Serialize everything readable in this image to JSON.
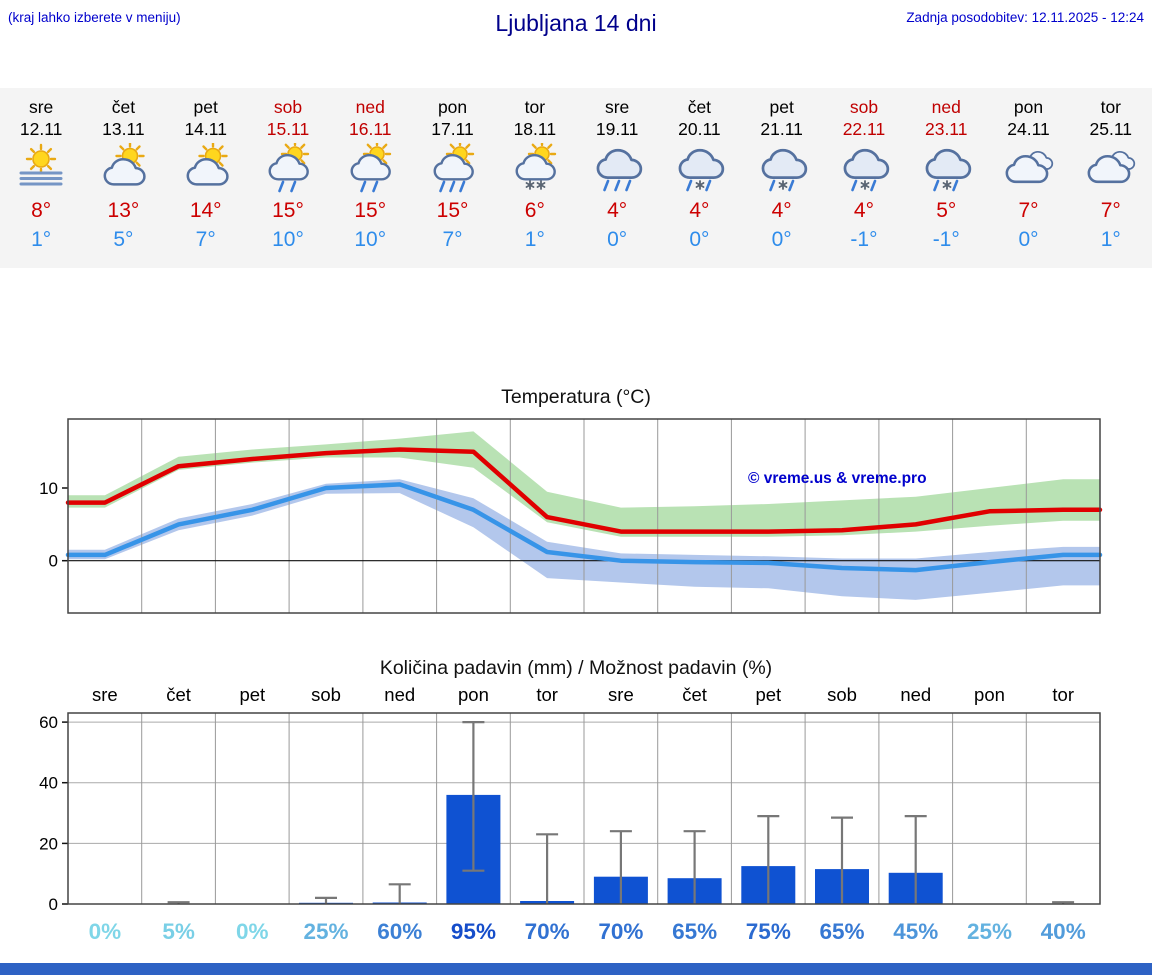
{
  "header": {
    "left_note": "(kraj lahko izberete v meniju)",
    "title": "Ljubljana 14 dni",
    "last_update": "Zadnja posodobitev: 12.11.2025 - 12:24"
  },
  "forecast": {
    "days": [
      {
        "name": "sre",
        "date": "12.11",
        "weekend": false,
        "icon": "fog-sun",
        "high": "8°",
        "low": "1°"
      },
      {
        "name": "čet",
        "date": "13.11",
        "weekend": false,
        "icon": "sun-cloud",
        "high": "13°",
        "low": "5°"
      },
      {
        "name": "pet",
        "date": "14.11",
        "weekend": false,
        "icon": "sun-cloud",
        "high": "14°",
        "low": "7°"
      },
      {
        "name": "sob",
        "date": "15.11",
        "weekend": true,
        "icon": "sun-showers",
        "high": "15°",
        "low": "10°"
      },
      {
        "name": "ned",
        "date": "16.11",
        "weekend": true,
        "icon": "sun-showers",
        "high": "15°",
        "low": "10°"
      },
      {
        "name": "pon",
        "date": "17.11",
        "weekend": false,
        "icon": "sun-rain",
        "high": "15°",
        "low": "7°"
      },
      {
        "name": "tor",
        "date": "18.11",
        "weekend": false,
        "icon": "sun-snow",
        "high": "6°",
        "low": "1°"
      },
      {
        "name": "sre",
        "date": "19.11",
        "weekend": false,
        "icon": "rain",
        "high": "4°",
        "low": "0°"
      },
      {
        "name": "čet",
        "date": "20.11",
        "weekend": false,
        "icon": "sleet",
        "high": "4°",
        "low": "0°"
      },
      {
        "name": "pet",
        "date": "21.11",
        "weekend": false,
        "icon": "sleet",
        "high": "4°",
        "low": "0°"
      },
      {
        "name": "sob",
        "date": "22.11",
        "weekend": true,
        "icon": "sleet",
        "high": "4°",
        "low": "-1°"
      },
      {
        "name": "ned",
        "date": "23.11",
        "weekend": true,
        "icon": "sleet",
        "high": "5°",
        "low": "-1°"
      },
      {
        "name": "pon",
        "date": "24.11",
        "weekend": false,
        "icon": "cloudy",
        "high": "7°",
        "low": "0°"
      },
      {
        "name": "tor",
        "date": "25.11",
        "weekend": false,
        "icon": "cloudy",
        "high": "7°",
        "low": "1°"
      }
    ]
  },
  "chart_data": [
    {
      "type": "line",
      "title": "Temperatura (°C)",
      "categories": [
        "sre 12.11",
        "čet 13.11",
        "pet 14.11",
        "sob 15.11",
        "ned 16.11",
        "pon 17.11",
        "tor 18.11",
        "sre 19.11",
        "čet 20.11",
        "pet 21.11",
        "sob 22.11",
        "ned 23.11",
        "pon 24.11",
        "tor 25.11"
      ],
      "series": [
        {
          "name": "max temperature",
          "color": "#e00000",
          "values": [
            8,
            13,
            14,
            14.8,
            15.3,
            15,
            6,
            4,
            4,
            4,
            4.2,
            5,
            6.8,
            7
          ]
        },
        {
          "name": "min temperature",
          "color": "#3794e8",
          "values": [
            0.8,
            5,
            7,
            10,
            10.5,
            7,
            1.2,
            0,
            -0.2,
            -0.3,
            -1,
            -1.3,
            -0.2,
            0.8
          ]
        }
      ],
      "bands": [
        {
          "name": "max-range",
          "color": "#b9e2b4",
          "upper": [
            9,
            14.3,
            15.3,
            16,
            16.8,
            17.8,
            9.5,
            7.3,
            7.5,
            7.8,
            8.3,
            8.8,
            10,
            11.2
          ],
          "lower": [
            7.3,
            12.5,
            13.5,
            14.2,
            14.2,
            12.8,
            5.3,
            3.3,
            3.3,
            3.3,
            3.5,
            4,
            4.8,
            5.5
          ]
        },
        {
          "name": "min-range",
          "color": "#b3c7ec",
          "upper": [
            1.5,
            5.8,
            7.8,
            10.6,
            11.2,
            8.6,
            2.6,
            1,
            0.8,
            0.6,
            0.3,
            0.3,
            1.2,
            1.9
          ],
          "lower": [
            0.2,
            4.2,
            6.2,
            9.2,
            9.3,
            4.6,
            -2.4,
            -3,
            -3.6,
            -3.8,
            -4.9,
            -5.4,
            -4.4,
            -3.4
          ]
        }
      ],
      "ylim": [
        -7.2,
        19.5
      ],
      "yticks": [
        0,
        10
      ],
      "grid": "vertical",
      "watermark": "© vreme.us & vreme.pro"
    },
    {
      "type": "bar",
      "title": "Količina padavin (mm) / Možnost padavin (%)",
      "categories": [
        "sre",
        "čet",
        "pet",
        "sob",
        "ned",
        "pon",
        "tor",
        "sre",
        "čet",
        "pet",
        "sob",
        "ned",
        "pon",
        "tor"
      ],
      "values": [
        0,
        0.15,
        0,
        0.4,
        0.5,
        36,
        1,
        9,
        8.5,
        12.5,
        11.5,
        10.3,
        0,
        0.15
      ],
      "whisker_low": [
        0,
        0,
        0,
        0,
        0,
        11,
        0,
        0,
        0,
        0,
        0,
        0,
        0,
        0
      ],
      "whisker_high": [
        0,
        0.6,
        0,
        2,
        6.5,
        60,
        23,
        24,
        24,
        29,
        28.5,
        29,
        0,
        0.6
      ],
      "probability_percent": [
        0,
        5,
        0,
        25,
        60,
        95,
        70,
        70,
        65,
        75,
        65,
        45,
        25,
        40
      ],
      "ylim": [
        0,
        63
      ],
      "yticks": [
        0,
        20,
        40,
        60
      ],
      "bar_color": "#0f52d2",
      "whisker_color": "#777777",
      "probability_color_scale": {
        "low": "#7fd6e8",
        "high": "#0f46c8"
      }
    }
  ]
}
